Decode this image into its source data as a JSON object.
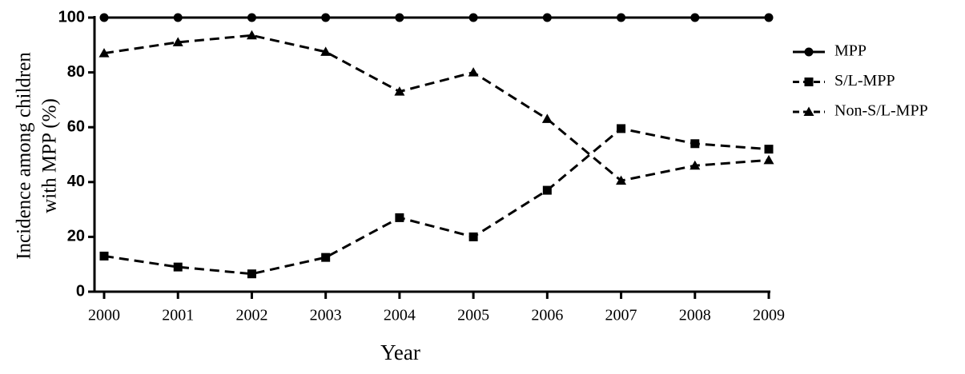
{
  "chart_data": {
    "type": "line",
    "xlabel": "Year",
    "ylabel": [
      "Incidence among children",
      "with MPP (%)"
    ],
    "x": [
      2000,
      2001,
      2002,
      2003,
      2004,
      2005,
      2006,
      2007,
      2008,
      2009
    ],
    "xlim": [
      2000,
      2009
    ],
    "xticks": [
      2000,
      2001,
      2002,
      2003,
      2004,
      2005,
      2006,
      2007,
      2008,
      2009
    ],
    "ylim": [
      0,
      100
    ],
    "yticks": [
      0,
      20,
      40,
      60,
      80,
      100
    ],
    "legend": "right",
    "series": [
      {
        "name": "MPP",
        "color": "#000000",
        "line_style": "solid",
        "marker": "circle",
        "values": [
          100,
          100,
          100,
          100,
          100,
          100,
          100,
          100,
          100,
          100
        ]
      },
      {
        "name": "S/L-MPP",
        "color": "#000000",
        "line_style": "dashed",
        "marker": "square",
        "values": [
          13,
          9,
          6.5,
          12.5,
          27,
          20,
          37,
          59.5,
          54,
          52
        ]
      },
      {
        "name": "Non-S/L-MPP",
        "color": "#000000",
        "line_style": "dashed",
        "marker": "triangle",
        "values": [
          87,
          91,
          93.5,
          87.5,
          73,
          80,
          63,
          40.5,
          46,
          48
        ]
      }
    ]
  }
}
